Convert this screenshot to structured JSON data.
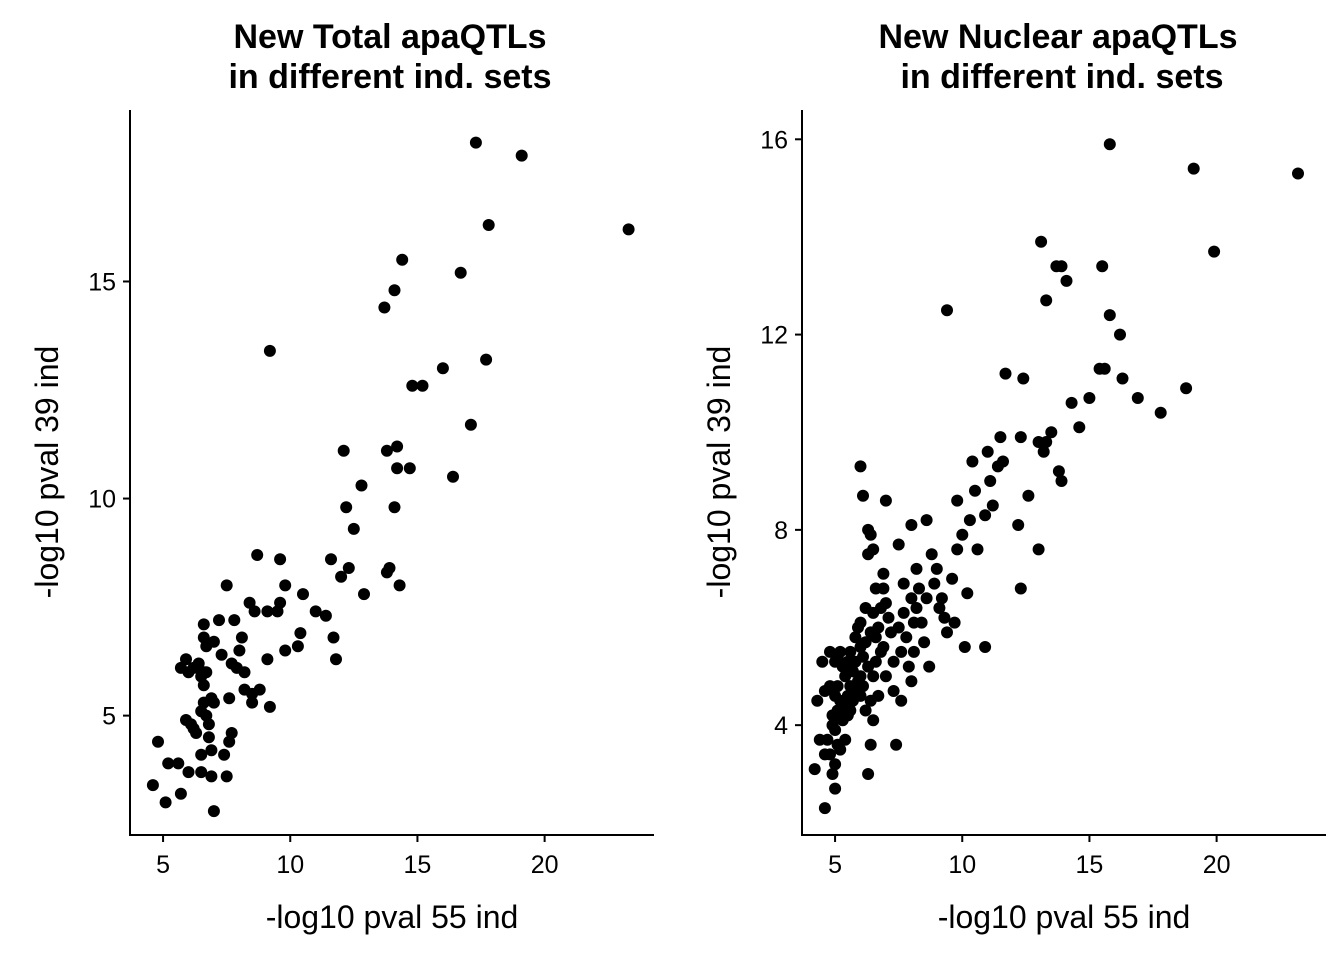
{
  "chart_data": [
    {
      "type": "scatter",
      "title_line1": "New Total apaQTLs",
      "title_line2": "in different ind. sets",
      "xlabel": "-log10 pval 55 ind",
      "ylabel": "-log10 pval 39 ind",
      "xlim": [
        3.7,
        24.3
      ],
      "ylim": [
        2.25,
        18.95
      ],
      "xticks": [
        5,
        10,
        15,
        20
      ],
      "yticks": [
        5,
        10,
        15
      ],
      "grid": false,
      "legend": "none",
      "point_color": "#000000",
      "series": [
        {
          "points": [
            [
              4.6,
              3.4
            ],
            [
              4.8,
              4.4
            ],
            [
              5.1,
              3.0
            ],
            [
              5.2,
              3.9
            ],
            [
              5.6,
              3.9
            ],
            [
              5.7,
              6.1
            ],
            [
              5.7,
              3.2
            ],
            [
              5.9,
              4.9
            ],
            [
              5.9,
              6.3
            ],
            [
              6.0,
              3.7
            ],
            [
              6.0,
              6.0
            ],
            [
              6.1,
              4.8
            ],
            [
              6.2,
              6.1
            ],
            [
              6.2,
              4.7
            ],
            [
              6.3,
              4.6
            ],
            [
              6.4,
              6.2
            ],
            [
              6.5,
              5.9
            ],
            [
              6.5,
              5.1
            ],
            [
              6.5,
              4.1
            ],
            [
              6.5,
              3.7
            ],
            [
              6.6,
              7.1
            ],
            [
              6.6,
              6.8
            ],
            [
              6.6,
              6.0
            ],
            [
              6.6,
              5.7
            ],
            [
              6.6,
              5.3
            ],
            [
              6.7,
              6.6
            ],
            [
              6.7,
              6.0
            ],
            [
              6.7,
              5.0
            ],
            [
              6.8,
              4.5
            ],
            [
              6.8,
              4.8
            ],
            [
              6.9,
              4.2
            ],
            [
              6.9,
              3.6
            ],
            [
              6.9,
              5.4
            ],
            [
              7.0,
              6.7
            ],
            [
              7.0,
              5.3
            ],
            [
              7.0,
              2.8
            ],
            [
              7.2,
              7.2
            ],
            [
              7.3,
              6.4
            ],
            [
              7.4,
              4.1
            ],
            [
              7.5,
              3.6
            ],
            [
              7.5,
              8.0
            ],
            [
              7.6,
              4.4
            ],
            [
              7.6,
              5.4
            ],
            [
              7.7,
              6.2
            ],
            [
              7.7,
              4.6
            ],
            [
              7.8,
              7.2
            ],
            [
              7.9,
              6.1
            ],
            [
              8.0,
              6.5
            ],
            [
              8.1,
              6.8
            ],
            [
              8.2,
              6.0
            ],
            [
              8.2,
              5.6
            ],
            [
              8.4,
              7.6
            ],
            [
              8.5,
              5.3
            ],
            [
              8.5,
              5.5
            ],
            [
              8.6,
              7.4
            ],
            [
              8.7,
              8.7
            ],
            [
              8.8,
              5.6
            ],
            [
              9.1,
              6.3
            ],
            [
              9.1,
              7.4
            ],
            [
              9.2,
              5.2
            ],
            [
              9.2,
              13.4
            ],
            [
              9.5,
              7.4
            ],
            [
              9.6,
              7.6
            ],
            [
              9.6,
              8.6
            ],
            [
              9.8,
              6.5
            ],
            [
              9.8,
              8.0
            ],
            [
              10.3,
              6.6
            ],
            [
              10.4,
              6.9
            ],
            [
              10.5,
              7.8
            ],
            [
              11.0,
              7.4
            ],
            [
              11.4,
              7.3
            ],
            [
              11.6,
              8.6
            ],
            [
              11.7,
              6.8
            ],
            [
              11.8,
              6.3
            ],
            [
              12.0,
              8.2
            ],
            [
              12.1,
              11.1
            ],
            [
              12.2,
              9.8
            ],
            [
              12.3,
              8.4
            ],
            [
              12.5,
              9.3
            ],
            [
              12.8,
              10.3
            ],
            [
              12.9,
              7.8
            ],
            [
              13.7,
              14.4
            ],
            [
              13.8,
              11.1
            ],
            [
              13.8,
              8.3
            ],
            [
              13.9,
              8.4
            ],
            [
              14.1,
              14.8
            ],
            [
              14.1,
              9.8
            ],
            [
              14.2,
              10.7
            ],
            [
              14.2,
              11.2
            ],
            [
              14.3,
              8.0
            ],
            [
              14.4,
              15.5
            ],
            [
              14.7,
              10.7
            ],
            [
              14.8,
              12.6
            ],
            [
              15.2,
              12.6
            ],
            [
              16.0,
              13.0
            ],
            [
              16.4,
              10.5
            ],
            [
              16.7,
              15.2
            ],
            [
              17.1,
              11.7
            ],
            [
              17.3,
              18.2
            ],
            [
              17.7,
              13.2
            ],
            [
              17.8,
              16.3
            ],
            [
              19.1,
              17.9
            ],
            [
              23.3,
              16.2
            ]
          ]
        }
      ]
    },
    {
      "type": "scatter",
      "title_line1": "New Nuclear apaQTLs",
      "title_line2": "in different ind. sets",
      "xlabel": "-log10 pval 55 ind",
      "ylabel": "-log10 pval 39 ind",
      "xlim": [
        3.7,
        24.3
      ],
      "ylim": [
        1.75,
        16.6
      ],
      "xticks": [
        5,
        10,
        15,
        20
      ],
      "yticks": [
        4,
        8,
        12,
        16
      ],
      "grid": false,
      "legend": "none",
      "point_color": "#000000",
      "series": [
        {
          "points": [
            [
              4.2,
              3.1
            ],
            [
              4.3,
              4.5
            ],
            [
              4.4,
              3.7
            ],
            [
              4.5,
              5.3
            ],
            [
              4.6,
              4.7
            ],
            [
              4.6,
              3.4
            ],
            [
              4.6,
              2.3
            ],
            [
              4.7,
              3.7
            ],
            [
              4.8,
              5.5
            ],
            [
              4.8,
              4.8
            ],
            [
              4.8,
              3.4
            ],
            [
              4.9,
              4.2
            ],
            [
              4.9,
              4.0
            ],
            [
              4.9,
              3.0
            ],
            [
              5.0,
              5.3
            ],
            [
              5.0,
              4.6
            ],
            [
              5.0,
              4.2
            ],
            [
              5.0,
              3.9
            ],
            [
              5.0,
              3.2
            ],
            [
              5.0,
              2.7
            ],
            [
              5.1,
              5.4
            ],
            [
              5.1,
              4.8
            ],
            [
              5.1,
              4.3
            ],
            [
              5.1,
              3.6
            ],
            [
              5.2,
              5.5
            ],
            [
              5.2,
              4.5
            ],
            [
              5.2,
              3.5
            ],
            [
              5.3,
              5.2
            ],
            [
              5.3,
              4.4
            ],
            [
              5.3,
              4.1
            ],
            [
              5.4,
              5.0
            ],
            [
              5.4,
              3.7
            ],
            [
              5.5,
              5.3
            ],
            [
              5.5,
              4.6
            ],
            [
              5.5,
              4.2
            ],
            [
              5.6,
              5.5
            ],
            [
              5.6,
              4.8
            ],
            [
              5.6,
              4.3
            ],
            [
              5.7,
              5.1
            ],
            [
              5.7,
              4.5
            ],
            [
              5.8,
              5.8
            ],
            [
              5.8,
              5.3
            ],
            [
              5.9,
              6.0
            ],
            [
              5.9,
              4.9
            ],
            [
              5.9,
              4.7
            ],
            [
              6.0,
              9.3
            ],
            [
              6.0,
              6.1
            ],
            [
              6.0,
              5.6
            ],
            [
              6.0,
              5.0
            ],
            [
              6.0,
              4.6
            ],
            [
              6.1,
              8.7
            ],
            [
              6.1,
              5.4
            ],
            [
              6.1,
              4.8
            ],
            [
              6.2,
              6.4
            ],
            [
              6.2,
              5.7
            ],
            [
              6.2,
              4.3
            ],
            [
              6.3,
              8.0
            ],
            [
              6.3,
              7.5
            ],
            [
              6.3,
              5.2
            ],
            [
              6.3,
              3.0
            ],
            [
              6.4,
              7.9
            ],
            [
              6.4,
              5.9
            ],
            [
              6.4,
              4.5
            ],
            [
              6.4,
              3.6
            ],
            [
              6.5,
              7.6
            ],
            [
              6.5,
              6.3
            ],
            [
              6.5,
              5.0
            ],
            [
              6.5,
              4.1
            ],
            [
              6.6,
              6.8
            ],
            [
              6.6,
              5.8
            ],
            [
              6.6,
              5.3
            ],
            [
              6.7,
              6.0
            ],
            [
              6.7,
              4.6
            ],
            [
              6.8,
              6.4
            ],
            [
              6.8,
              5.5
            ],
            [
              6.9,
              7.1
            ],
            [
              6.9,
              6.8
            ],
            [
              6.9,
              5.6
            ],
            [
              7.0,
              8.6
            ],
            [
              7.0,
              6.5
            ],
            [
              7.0,
              5.0
            ],
            [
              7.1,
              6.2
            ],
            [
              7.2,
              5.9
            ],
            [
              7.3,
              5.3
            ],
            [
              7.3,
              4.7
            ],
            [
              7.4,
              3.6
            ],
            [
              7.5,
              7.7
            ],
            [
              7.5,
              6.0
            ],
            [
              7.6,
              5.5
            ],
            [
              7.6,
              4.5
            ],
            [
              7.7,
              6.9
            ],
            [
              7.7,
              6.3
            ],
            [
              7.8,
              5.8
            ],
            [
              7.9,
              5.2
            ],
            [
              8.0,
              8.1
            ],
            [
              8.0,
              6.6
            ],
            [
              8.0,
              4.9
            ],
            [
              8.1,
              6.1
            ],
            [
              8.1,
              5.5
            ],
            [
              8.2,
              7.2
            ],
            [
              8.2,
              6.4
            ],
            [
              8.3,
              6.8
            ],
            [
              8.4,
              6.1
            ],
            [
              8.5,
              5.7
            ],
            [
              8.6,
              8.2
            ],
            [
              8.6,
              6.6
            ],
            [
              8.7,
              5.2
            ],
            [
              8.8,
              7.5
            ],
            [
              8.9,
              6.9
            ],
            [
              9.0,
              7.2
            ],
            [
              9.1,
              6.4
            ],
            [
              9.2,
              6.6
            ],
            [
              9.3,
              6.2
            ],
            [
              9.4,
              5.9
            ],
            [
              9.4,
              12.5
            ],
            [
              9.6,
              7.0
            ],
            [
              9.7,
              6.1
            ],
            [
              9.8,
              7.6
            ],
            [
              9.8,
              8.6
            ],
            [
              10.0,
              7.9
            ],
            [
              10.1,
              5.6
            ],
            [
              10.2,
              6.7
            ],
            [
              10.3,
              8.2
            ],
            [
              10.4,
              9.4
            ],
            [
              10.5,
              8.8
            ],
            [
              10.6,
              7.6
            ],
            [
              10.9,
              8.3
            ],
            [
              10.9,
              5.6
            ],
            [
              11.0,
              9.6
            ],
            [
              11.1,
              9.0
            ],
            [
              11.2,
              8.5
            ],
            [
              11.4,
              9.3
            ],
            [
              11.5,
              9.9
            ],
            [
              11.6,
              9.4
            ],
            [
              11.7,
              11.2
            ],
            [
              12.2,
              8.1
            ],
            [
              12.3,
              6.8
            ],
            [
              12.3,
              9.9
            ],
            [
              12.4,
              11.1
            ],
            [
              12.6,
              8.7
            ],
            [
              13.0,
              9.8
            ],
            [
              13.0,
              7.6
            ],
            [
              13.1,
              13.9
            ],
            [
              13.2,
              9.6
            ],
            [
              13.3,
              12.7
            ],
            [
              13.3,
              9.8
            ],
            [
              13.5,
              10.0
            ],
            [
              13.7,
              13.4
            ],
            [
              13.8,
              9.2
            ],
            [
              13.9,
              13.4
            ],
            [
              13.9,
              9.0
            ],
            [
              14.1,
              13.1
            ],
            [
              14.3,
              10.6
            ],
            [
              14.6,
              10.1
            ],
            [
              15.0,
              10.7
            ],
            [
              15.4,
              11.3
            ],
            [
              15.5,
              13.4
            ],
            [
              15.6,
              11.3
            ],
            [
              15.8,
              12.4
            ],
            [
              15.8,
              15.9
            ],
            [
              16.2,
              12.0
            ],
            [
              16.3,
              11.1
            ],
            [
              16.9,
              10.7
            ],
            [
              17.8,
              10.4
            ],
            [
              18.8,
              10.9
            ],
            [
              19.1,
              15.4
            ],
            [
              19.9,
              13.7
            ],
            [
              23.2,
              15.3
            ]
          ]
        }
      ]
    }
  ]
}
